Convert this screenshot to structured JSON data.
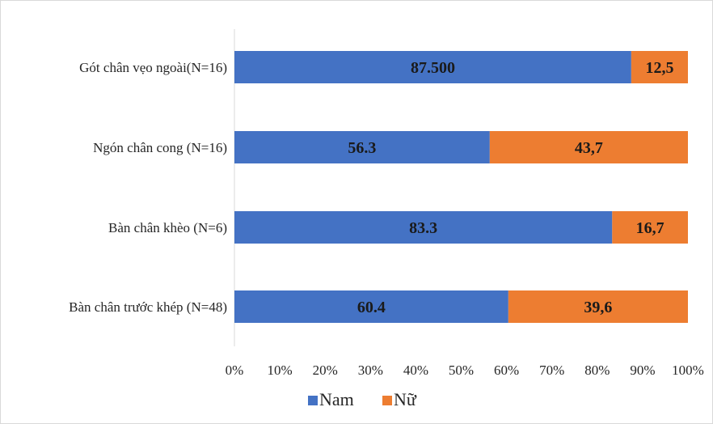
{
  "chart_data": {
    "type": "bar",
    "orientation": "horizontal",
    "stacked": "percent",
    "categories": [
      "Gót chân vẹo ngoài(N=16)",
      "Ngón chân cong (N=16)",
      "Bàn chân khèo (N=6)",
      "Bàn chân trước khép (N=48)"
    ],
    "series": [
      {
        "name": "Nam",
        "color": "#4472c4",
        "values": [
          87.5,
          56.3,
          83.3,
          60.4
        ],
        "data_labels": [
          "87.500",
          "56.3",
          "83.3",
          "60.4"
        ]
      },
      {
        "name": "Nữ",
        "color": "#ed7d31",
        "values": [
          12.5,
          43.7,
          16.7,
          39.6
        ],
        "data_labels": [
          "12,5",
          "43,7",
          "16,7",
          "39,6"
        ]
      }
    ],
    "x_ticks": [
      "0%",
      "10%",
      "20%",
      "30%",
      "40%",
      "50%",
      "60%",
      "70%",
      "80%",
      "90%",
      "100%"
    ],
    "xlim": [
      0,
      100
    ],
    "grid": false,
    "legend_position": "bottom"
  }
}
